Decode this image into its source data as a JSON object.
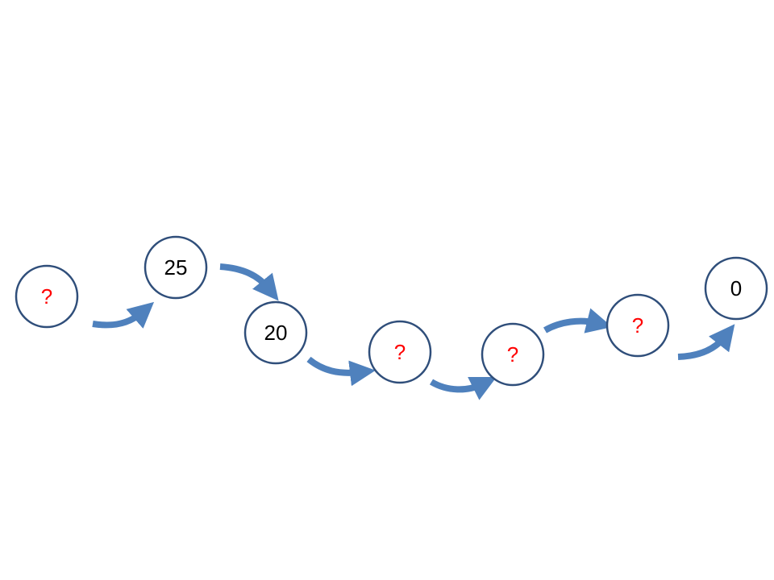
{
  "colors": {
    "circle_stroke": "#2f4e7a",
    "arrow": "#4f81bd",
    "known_text": "#000000",
    "unknown_text": "#ff0000"
  },
  "nodes": [
    {
      "label": "?",
      "unknown": true
    },
    {
      "label": "25",
      "unknown": false
    },
    {
      "label": "20",
      "unknown": false
    },
    {
      "label": "?",
      "unknown": true
    },
    {
      "label": "?",
      "unknown": true
    },
    {
      "label": "?",
      "unknown": true
    },
    {
      "label": "0",
      "unknown": false
    }
  ]
}
